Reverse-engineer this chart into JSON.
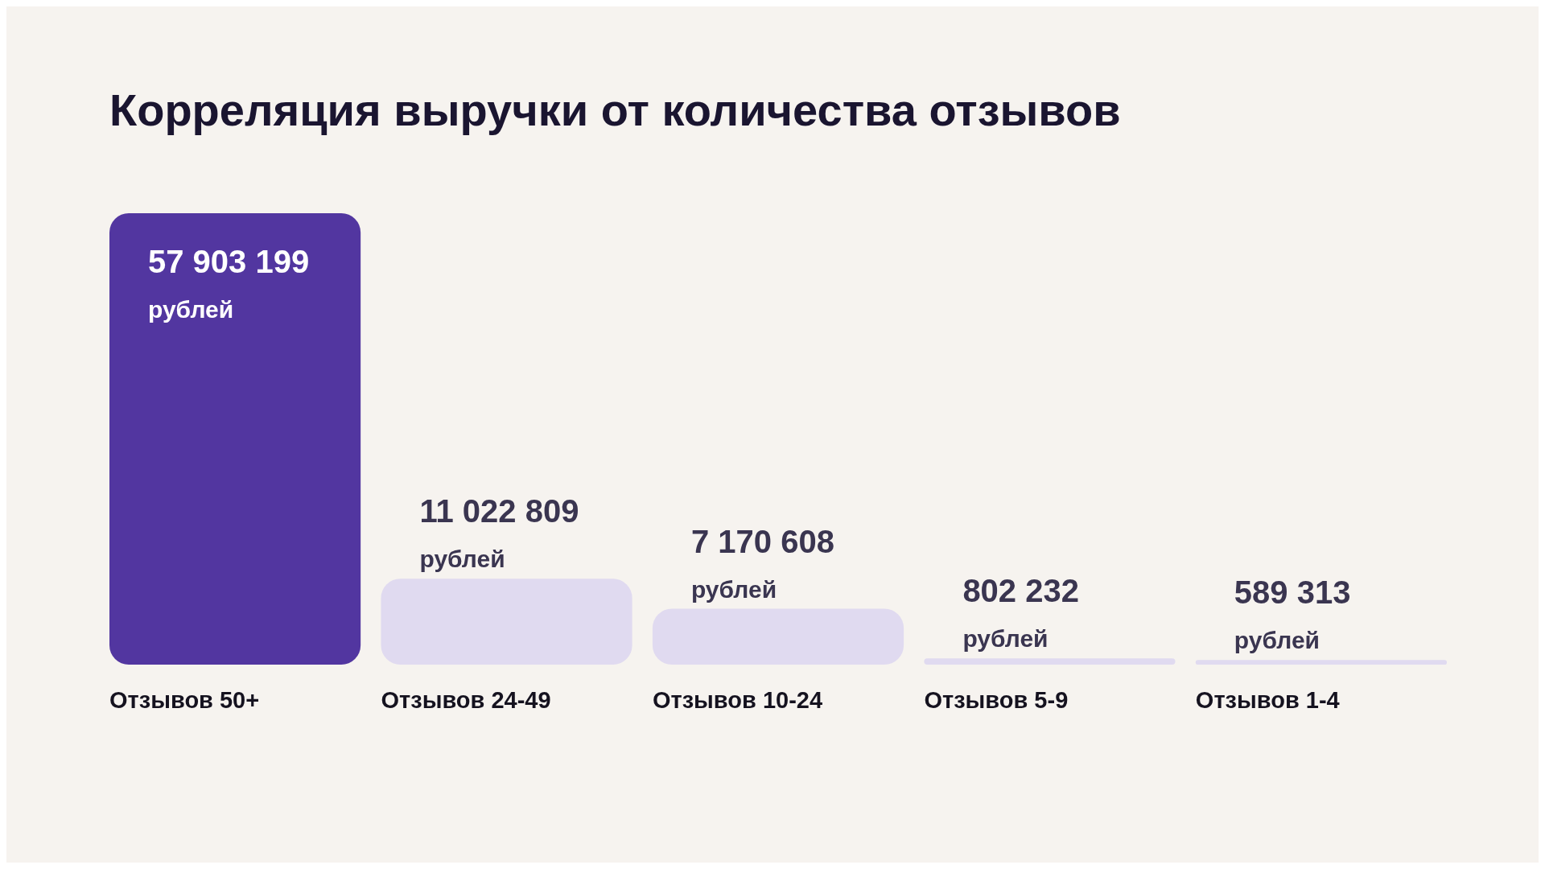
{
  "chart_data": {
    "type": "bar",
    "title": "Корреляция выручки от количества отзывов",
    "categories": [
      "Отзывов 50+",
      "Отзывов 24-49",
      "Отзывов 10-24",
      "Отзывов 5-9",
      "Отзывов 1-4"
    ],
    "values": [
      57903199,
      11022809,
      7170608,
      802232,
      589313
    ],
    "colors": [
      "#5236a0",
      "#e0daf0",
      "#e0daf0",
      "#e0daf0",
      "#e0daf0"
    ],
    "value_labels": [
      "57 903 199 рублей",
      "11 022 809 рублей",
      "7 170 608 рублей",
      "802 232 рублей",
      "589 313 рублей"
    ]
  }
}
